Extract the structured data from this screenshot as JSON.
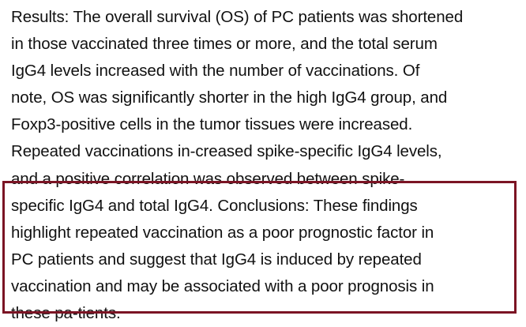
{
  "document": {
    "lines": [
      "Results: The overall survival (OS) of PC patients was shortened",
      "in those vaccinated three times or more, and the total serum",
      "IgG4 levels increased with the number of vaccinations. Of",
      "note, OS was significantly shorter in the high IgG4 group, and",
      "Foxp3-positive cells in the tumor tissues were increased.",
      "Repeated vaccinations in-creased spike-specific IgG4 levels,",
      "and a positive correlation was observed between spike-",
      "specific IgG4 and total IgG4. Conclusions: These findings",
      "highlight repeated vaccination as a poor prognostic factor in",
      "PC patients and suggest that IgG4 is induced by repeated",
      "vaccination and may be associated with a poor prognosis in",
      "these pa-tients."
    ]
  },
  "colors": {
    "text": "#111111",
    "highlight_border": "#7b1424",
    "background": "#ffffff"
  }
}
